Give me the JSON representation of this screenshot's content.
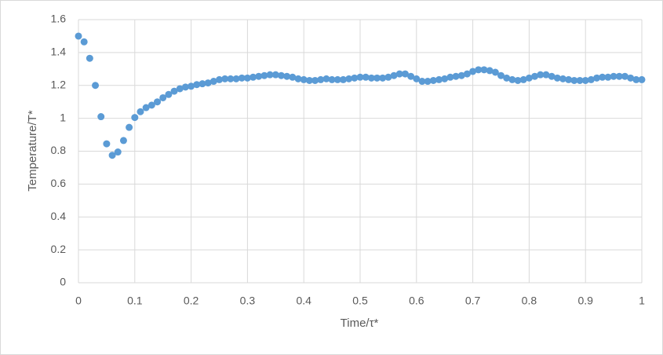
{
  "chart_data": {
    "type": "scatter",
    "x_label": "Time/τ*",
    "y_label": "Temperature/T*",
    "x": [
      0,
      0.01,
      0.02,
      0.03,
      0.04,
      0.05,
      0.06,
      0.07,
      0.08,
      0.09,
      0.1,
      0.11,
      0.12,
      0.13,
      0.14,
      0.15,
      0.16,
      0.17,
      0.18,
      0.19,
      0.2,
      0.21,
      0.22,
      0.23,
      0.24,
      0.25,
      0.26,
      0.27,
      0.28,
      0.29,
      0.3,
      0.31,
      0.32,
      0.33,
      0.34,
      0.35,
      0.36,
      0.37,
      0.38,
      0.39,
      0.4,
      0.41,
      0.42,
      0.43,
      0.44,
      0.45,
      0.46,
      0.47,
      0.48,
      0.49,
      0.5,
      0.51,
      0.52,
      0.53,
      0.54,
      0.55,
      0.56,
      0.57,
      0.58,
      0.59,
      0.6,
      0.61,
      0.62,
      0.63,
      0.64,
      0.65,
      0.66,
      0.67,
      0.68,
      0.69,
      0.7,
      0.71,
      0.72,
      0.73,
      0.74,
      0.75,
      0.76,
      0.77,
      0.78,
      0.79,
      0.8,
      0.81,
      0.82,
      0.83,
      0.84,
      0.85,
      0.86,
      0.87,
      0.88,
      0.89,
      0.9,
      0.91,
      0.92,
      0.93,
      0.94,
      0.95,
      0.96,
      0.97,
      0.98,
      0.99,
      1
    ],
    "values": [
      1.5,
      1.465,
      1.365,
      1.2,
      1.01,
      0.845,
      0.775,
      0.795,
      0.865,
      0.945,
      1.005,
      1.04,
      1.065,
      1.08,
      1.1,
      1.125,
      1.145,
      1.165,
      1.18,
      1.19,
      1.195,
      1.205,
      1.21,
      1.215,
      1.225,
      1.235,
      1.24,
      1.24,
      1.24,
      1.245,
      1.245,
      1.25,
      1.255,
      1.26,
      1.265,
      1.265,
      1.26,
      1.255,
      1.25,
      1.24,
      1.235,
      1.23,
      1.23,
      1.235,
      1.24,
      1.235,
      1.235,
      1.235,
      1.24,
      1.245,
      1.25,
      1.25,
      1.245,
      1.245,
      1.245,
      1.25,
      1.26,
      1.27,
      1.27,
      1.255,
      1.24,
      1.225,
      1.225,
      1.23,
      1.235,
      1.24,
      1.25,
      1.255,
      1.26,
      1.27,
      1.285,
      1.295,
      1.295,
      1.29,
      1.28,
      1.26,
      1.245,
      1.235,
      1.23,
      1.235,
      1.245,
      1.255,
      1.265,
      1.265,
      1.255,
      1.245,
      1.24,
      1.235,
      1.23,
      1.23,
      1.23,
      1.235,
      1.245,
      1.25,
      1.25,
      1.255,
      1.255,
      1.255,
      1.245,
      1.235,
      1.235
    ],
    "color": "#5b9bd5",
    "xlim": [
      0,
      1
    ],
    "xticks": [
      0,
      0.1,
      0.2,
      0.3,
      0.4,
      0.5,
      0.6,
      0.7,
      0.8,
      0.9,
      1
    ],
    "ylim": [
      0,
      1.6
    ],
    "yticks": [
      0,
      0.2,
      0.4,
      0.6,
      0.8,
      1,
      1.2,
      1.4,
      1.6
    ],
    "grid": true
  }
}
